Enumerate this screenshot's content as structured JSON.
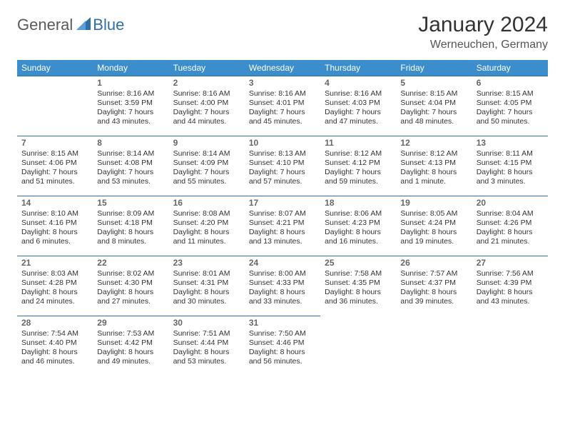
{
  "brand": {
    "word1": "General",
    "word2": "Blue"
  },
  "colors": {
    "header_bg": "#3c8dcc",
    "border": "#2f6fa8",
    "text": "#333333",
    "muted": "#666666",
    "logo_gray": "#5a5a5a",
    "logo_blue": "#2f6fa8",
    "background": "#ffffff"
  },
  "title": "January 2024",
  "location": "Werneuchen, Germany",
  "weekdays": [
    "Sunday",
    "Monday",
    "Tuesday",
    "Wednesday",
    "Thursday",
    "Friday",
    "Saturday"
  ],
  "layout": {
    "columns": 7,
    "start_blank_cells": 1,
    "header_fontsize": 12,
    "daynum_fontsize": 12,
    "body_fontsize": 10.5,
    "title_fontsize": 30,
    "location_fontsize": 16
  },
  "days": [
    {
      "n": "1",
      "sunrise": "Sunrise: 8:16 AM",
      "sunset": "Sunset: 3:59 PM",
      "dl1": "Daylight: 7 hours",
      "dl2": "and 43 minutes."
    },
    {
      "n": "2",
      "sunrise": "Sunrise: 8:16 AM",
      "sunset": "Sunset: 4:00 PM",
      "dl1": "Daylight: 7 hours",
      "dl2": "and 44 minutes."
    },
    {
      "n": "3",
      "sunrise": "Sunrise: 8:16 AM",
      "sunset": "Sunset: 4:01 PM",
      "dl1": "Daylight: 7 hours",
      "dl2": "and 45 minutes."
    },
    {
      "n": "4",
      "sunrise": "Sunrise: 8:16 AM",
      "sunset": "Sunset: 4:03 PM",
      "dl1": "Daylight: 7 hours",
      "dl2": "and 47 minutes."
    },
    {
      "n": "5",
      "sunrise": "Sunrise: 8:15 AM",
      "sunset": "Sunset: 4:04 PM",
      "dl1": "Daylight: 7 hours",
      "dl2": "and 48 minutes."
    },
    {
      "n": "6",
      "sunrise": "Sunrise: 8:15 AM",
      "sunset": "Sunset: 4:05 PM",
      "dl1": "Daylight: 7 hours",
      "dl2": "and 50 minutes."
    },
    {
      "n": "7",
      "sunrise": "Sunrise: 8:15 AM",
      "sunset": "Sunset: 4:06 PM",
      "dl1": "Daylight: 7 hours",
      "dl2": "and 51 minutes."
    },
    {
      "n": "8",
      "sunrise": "Sunrise: 8:14 AM",
      "sunset": "Sunset: 4:08 PM",
      "dl1": "Daylight: 7 hours",
      "dl2": "and 53 minutes."
    },
    {
      "n": "9",
      "sunrise": "Sunrise: 8:14 AM",
      "sunset": "Sunset: 4:09 PM",
      "dl1": "Daylight: 7 hours",
      "dl2": "and 55 minutes."
    },
    {
      "n": "10",
      "sunrise": "Sunrise: 8:13 AM",
      "sunset": "Sunset: 4:10 PM",
      "dl1": "Daylight: 7 hours",
      "dl2": "and 57 minutes."
    },
    {
      "n": "11",
      "sunrise": "Sunrise: 8:12 AM",
      "sunset": "Sunset: 4:12 PM",
      "dl1": "Daylight: 7 hours",
      "dl2": "and 59 minutes."
    },
    {
      "n": "12",
      "sunrise": "Sunrise: 8:12 AM",
      "sunset": "Sunset: 4:13 PM",
      "dl1": "Daylight: 8 hours",
      "dl2": "and 1 minute."
    },
    {
      "n": "13",
      "sunrise": "Sunrise: 8:11 AM",
      "sunset": "Sunset: 4:15 PM",
      "dl1": "Daylight: 8 hours",
      "dl2": "and 3 minutes."
    },
    {
      "n": "14",
      "sunrise": "Sunrise: 8:10 AM",
      "sunset": "Sunset: 4:16 PM",
      "dl1": "Daylight: 8 hours",
      "dl2": "and 6 minutes."
    },
    {
      "n": "15",
      "sunrise": "Sunrise: 8:09 AM",
      "sunset": "Sunset: 4:18 PM",
      "dl1": "Daylight: 8 hours",
      "dl2": "and 8 minutes."
    },
    {
      "n": "16",
      "sunrise": "Sunrise: 8:08 AM",
      "sunset": "Sunset: 4:20 PM",
      "dl1": "Daylight: 8 hours",
      "dl2": "and 11 minutes."
    },
    {
      "n": "17",
      "sunrise": "Sunrise: 8:07 AM",
      "sunset": "Sunset: 4:21 PM",
      "dl1": "Daylight: 8 hours",
      "dl2": "and 13 minutes."
    },
    {
      "n": "18",
      "sunrise": "Sunrise: 8:06 AM",
      "sunset": "Sunset: 4:23 PM",
      "dl1": "Daylight: 8 hours",
      "dl2": "and 16 minutes."
    },
    {
      "n": "19",
      "sunrise": "Sunrise: 8:05 AM",
      "sunset": "Sunset: 4:24 PM",
      "dl1": "Daylight: 8 hours",
      "dl2": "and 19 minutes."
    },
    {
      "n": "20",
      "sunrise": "Sunrise: 8:04 AM",
      "sunset": "Sunset: 4:26 PM",
      "dl1": "Daylight: 8 hours",
      "dl2": "and 21 minutes."
    },
    {
      "n": "21",
      "sunrise": "Sunrise: 8:03 AM",
      "sunset": "Sunset: 4:28 PM",
      "dl1": "Daylight: 8 hours",
      "dl2": "and 24 minutes."
    },
    {
      "n": "22",
      "sunrise": "Sunrise: 8:02 AM",
      "sunset": "Sunset: 4:30 PM",
      "dl1": "Daylight: 8 hours",
      "dl2": "and 27 minutes."
    },
    {
      "n": "23",
      "sunrise": "Sunrise: 8:01 AM",
      "sunset": "Sunset: 4:31 PM",
      "dl1": "Daylight: 8 hours",
      "dl2": "and 30 minutes."
    },
    {
      "n": "24",
      "sunrise": "Sunrise: 8:00 AM",
      "sunset": "Sunset: 4:33 PM",
      "dl1": "Daylight: 8 hours",
      "dl2": "and 33 minutes."
    },
    {
      "n": "25",
      "sunrise": "Sunrise: 7:58 AM",
      "sunset": "Sunset: 4:35 PM",
      "dl1": "Daylight: 8 hours",
      "dl2": "and 36 minutes."
    },
    {
      "n": "26",
      "sunrise": "Sunrise: 7:57 AM",
      "sunset": "Sunset: 4:37 PM",
      "dl1": "Daylight: 8 hours",
      "dl2": "and 39 minutes."
    },
    {
      "n": "27",
      "sunrise": "Sunrise: 7:56 AM",
      "sunset": "Sunset: 4:39 PM",
      "dl1": "Daylight: 8 hours",
      "dl2": "and 43 minutes."
    },
    {
      "n": "28",
      "sunrise": "Sunrise: 7:54 AM",
      "sunset": "Sunset: 4:40 PM",
      "dl1": "Daylight: 8 hours",
      "dl2": "and 46 minutes."
    },
    {
      "n": "29",
      "sunrise": "Sunrise: 7:53 AM",
      "sunset": "Sunset: 4:42 PM",
      "dl1": "Daylight: 8 hours",
      "dl2": "and 49 minutes."
    },
    {
      "n": "30",
      "sunrise": "Sunrise: 7:51 AM",
      "sunset": "Sunset: 4:44 PM",
      "dl1": "Daylight: 8 hours",
      "dl2": "and 53 minutes."
    },
    {
      "n": "31",
      "sunrise": "Sunrise: 7:50 AM",
      "sunset": "Sunset: 4:46 PM",
      "dl1": "Daylight: 8 hours",
      "dl2": "and 56 minutes."
    }
  ]
}
